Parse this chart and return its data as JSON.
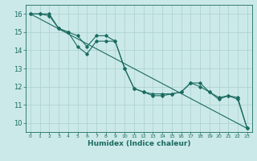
{
  "xlabel": "Humidex (Indice chaleur)",
  "ylabel": "",
  "xlim": [
    -0.5,
    23.5
  ],
  "ylim": [
    9.5,
    16.5
  ],
  "yticks": [
    10,
    11,
    12,
    13,
    14,
    15,
    16
  ],
  "xticks": [
    0,
    1,
    2,
    3,
    4,
    5,
    6,
    7,
    8,
    9,
    10,
    11,
    12,
    13,
    14,
    15,
    16,
    17,
    18,
    19,
    20,
    21,
    22,
    23
  ],
  "bg_color": "#cce9e9",
  "grid_color_major": "#aacfcf",
  "grid_color_minor": "#bbdcdc",
  "line_color": "#1a6b60",
  "line1_x": [
    0,
    1,
    2,
    3,
    4,
    5,
    6,
    7,
    8,
    9,
    10,
    11,
    12,
    13,
    14,
    15,
    16,
    17,
    18,
    19,
    20,
    21,
    22,
    23
  ],
  "line1_y": [
    16.0,
    16.0,
    15.9,
    15.2,
    15.0,
    14.2,
    13.8,
    14.5,
    14.5,
    14.5,
    13.0,
    11.9,
    11.7,
    11.6,
    11.6,
    11.6,
    11.7,
    12.2,
    12.0,
    11.7,
    11.3,
    11.5,
    11.3,
    9.7
  ],
  "line2_x": [
    0,
    1,
    2,
    3,
    4,
    5,
    6,
    7,
    8,
    9,
    10,
    11,
    12,
    13,
    14,
    15,
    16,
    17,
    18,
    19,
    20,
    21,
    22,
    23
  ],
  "line2_y": [
    16.0,
    16.0,
    16.0,
    15.2,
    15.0,
    14.8,
    14.2,
    14.8,
    14.8,
    14.5,
    13.0,
    11.9,
    11.7,
    11.5,
    11.5,
    11.6,
    11.7,
    12.2,
    12.2,
    11.7,
    11.4,
    11.5,
    11.4,
    9.7
  ],
  "line3_x": [
    0,
    23
  ],
  "line3_y": [
    16.0,
    9.7
  ]
}
